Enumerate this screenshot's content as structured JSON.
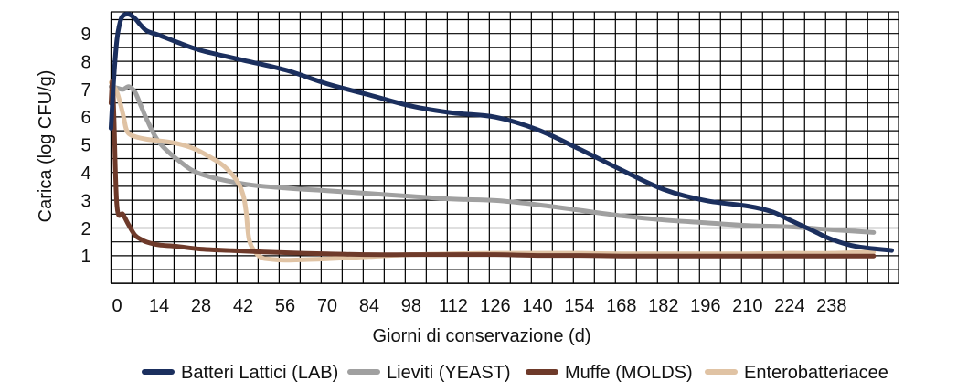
{
  "chart_data": {
    "type": "line",
    "title": "",
    "xlabel": "Giorni di conservazione (d)",
    "ylabel": "Carica (log CFU/g)",
    "xlim": [
      0,
      252
    ],
    "ylim": [
      0,
      10
    ],
    "x_ticks": [
      "0",
      "14",
      "28",
      "42",
      "56",
      "70",
      "84",
      "98",
      "112",
      "126",
      "140",
      "154",
      "168",
      "182",
      "196",
      "210",
      "224",
      "238"
    ],
    "y_ticks": [
      "1",
      "2",
      "3",
      "4",
      "5",
      "6",
      "7",
      "8",
      "9"
    ],
    "grid": true,
    "legend_position": "bottom",
    "series": [
      {
        "name": "Batteri Lattici (LAB)",
        "color": "#1b2f5e",
        "x": [
          -2,
          -1,
          0,
          1,
          2,
          4,
          6,
          8,
          10,
          14,
          20,
          28,
          42,
          56,
          70,
          84,
          98,
          112,
          126,
          140,
          154,
          168,
          182,
          196,
          210,
          218,
          224,
          232,
          238,
          246,
          258
        ],
        "y": [
          5.6,
          7.5,
          8.8,
          9.4,
          9.65,
          9.7,
          9.55,
          9.3,
          9.1,
          8.95,
          8.7,
          8.4,
          8.05,
          7.7,
          7.2,
          6.8,
          6.4,
          6.15,
          6.0,
          5.55,
          4.85,
          4.1,
          3.4,
          3.0,
          2.8,
          2.6,
          2.3,
          1.9,
          1.6,
          1.35,
          1.2
        ]
      },
      {
        "name": "Lieviti (YEAST)",
        "color": "#a0a0a0",
        "x": [
          -2,
          0,
          2,
          4,
          6,
          8,
          10,
          14,
          21,
          28,
          42,
          56,
          70,
          84,
          98,
          112,
          126,
          140,
          154,
          168,
          182,
          196,
          210,
          224,
          238,
          252
        ],
        "y": [
          7.1,
          7.05,
          7.0,
          7.1,
          6.9,
          6.4,
          5.9,
          5.1,
          4.4,
          3.95,
          3.6,
          3.45,
          3.35,
          3.25,
          3.15,
          3.05,
          3.0,
          2.85,
          2.65,
          2.45,
          2.3,
          2.2,
          2.1,
          2.05,
          1.95,
          1.85
        ]
      },
      {
        "name": "Muffe (MOLDS)",
        "color": "#6e3a2a",
        "x": [
          -2,
          -1.5,
          -1,
          0,
          2,
          4,
          6,
          8,
          10,
          14,
          20,
          28,
          42,
          56,
          70,
          84,
          98,
          112,
          126,
          140,
          154,
          168,
          182,
          196,
          210,
          224,
          238,
          252
        ],
        "y": [
          6.5,
          7.3,
          6.0,
          2.8,
          2.5,
          2.1,
          1.75,
          1.6,
          1.5,
          1.4,
          1.35,
          1.25,
          1.18,
          1.12,
          1.08,
          1.05,
          1.05,
          1.05,
          1.05,
          1.02,
          1.02,
          1.0,
          1.0,
          1.0,
          1.0,
          1.0,
          1.0,
          1.0
        ]
      },
      {
        "name": "Enterobatteriacee",
        "color": "#e0c3a4",
        "x": [
          -2,
          0,
          2,
          3,
          4,
          6,
          10,
          14,
          20,
          26,
          32,
          36,
          40,
          42,
          43,
          44,
          46,
          48,
          50,
          56,
          63,
          70,
          84,
          98,
          112,
          126,
          140,
          154,
          168,
          182,
          196,
          210,
          224,
          238,
          252
        ],
        "y": [
          7.25,
          6.9,
          6.1,
          5.6,
          5.4,
          5.3,
          5.2,
          5.15,
          5.05,
          4.85,
          4.5,
          4.2,
          3.7,
          3.2,
          2.6,
          1.6,
          1.15,
          0.95,
          0.9,
          0.85,
          0.87,
          0.9,
          0.98,
          1.05,
          1.08,
          1.1,
          1.1,
          1.1,
          1.08,
          1.08,
          1.08,
          1.08,
          1.1,
          1.1,
          1.15
        ]
      }
    ]
  }
}
